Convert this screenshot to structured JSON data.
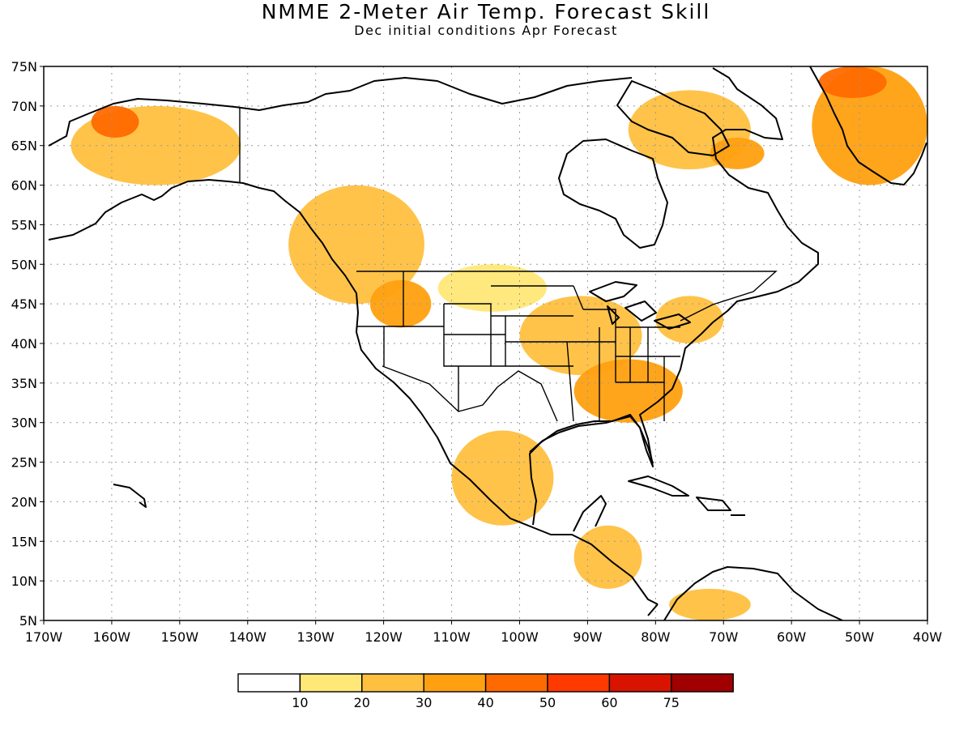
{
  "title": "NMME 2-Meter Air Temp. Forecast Skill",
  "subtitle": "Dec initial conditions  Apr Forecast",
  "map": {
    "lon_range": [
      -170,
      -40
    ],
    "lat_range": [
      5,
      75
    ],
    "lat_labels": [
      "5N",
      "10N",
      "15N",
      "20N",
      "25N",
      "30N",
      "35N",
      "40N",
      "45N",
      "50N",
      "55N",
      "60N",
      "65N",
      "70N",
      "75N"
    ],
    "lon_labels": [
      "170W",
      "160W",
      "150W",
      "140W",
      "130W",
      "120W",
      "110W",
      "100W",
      "90W",
      "80W",
      "70W",
      "60W",
      "50W",
      "40W"
    ],
    "grid": "dotted",
    "land_outline": "#000000"
  },
  "colorbar": {
    "ticks": [
      "10",
      "20",
      "30",
      "40",
      "50",
      "60",
      "75"
    ],
    "colors": [
      "#ffffff",
      "#ffe878",
      "#ffc040",
      "#ffa010",
      "#ff6a00",
      "#ff3a00",
      "#d81400",
      "#a00000"
    ]
  },
  "skill_regions": [
    {
      "name": "Alaska",
      "level": 2,
      "lon": [
        -166,
        -141
      ],
      "lat": [
        60,
        70
      ]
    },
    {
      "name": "Northern Alaska coast",
      "level": 4,
      "lon": [
        -163,
        -156
      ],
      "lat": [
        66,
        70
      ]
    },
    {
      "name": "Western Canada / Pacific Northwest",
      "level": 2,
      "lon": [
        -134,
        -114
      ],
      "lat": [
        45,
        60
      ]
    },
    {
      "name": "Idaho / Montana",
      "level": 3,
      "lon": [
        -122,
        -113
      ],
      "lat": [
        42,
        48
      ]
    },
    {
      "name": "Northern Plains",
      "level": 1,
      "lon": [
        -112,
        -96
      ],
      "lat": [
        44,
        50
      ]
    },
    {
      "name": "Midwest / Ohio Valley",
      "level": 2,
      "lon": [
        -100,
        -82
      ],
      "lat": [
        36,
        46
      ]
    },
    {
      "name": "Southeast US",
      "level": 3,
      "lon": [
        -92,
        -76
      ],
      "lat": [
        30,
        38
      ]
    },
    {
      "name": "Northeast US",
      "level": 2,
      "lon": [
        -80,
        -70
      ],
      "lat": [
        40,
        46
      ]
    },
    {
      "name": "Mexico",
      "level": 2,
      "lon": [
        -110,
        -95
      ],
      "lat": [
        17,
        29
      ]
    },
    {
      "name": "Central America",
      "level": 2,
      "lon": [
        -92,
        -82
      ],
      "lat": [
        9,
        17
      ]
    },
    {
      "name": "Northern South America",
      "level": 2,
      "lon": [
        -78,
        -66
      ],
      "lat": [
        5,
        9
      ]
    },
    {
      "name": "Hudson Strait / Baffin",
      "level": 2,
      "lon": [
        -84,
        -66
      ],
      "lat": [
        62,
        72
      ]
    },
    {
      "name": "Labrador",
      "level": 3,
      "lon": [
        -72,
        -64
      ],
      "lat": [
        62,
        66
      ]
    },
    {
      "name": "Greenland",
      "level": 3,
      "lon": [
        -57,
        -40
      ],
      "lat": [
        60,
        75
      ]
    },
    {
      "name": "Greenland northwest",
      "level": 4,
      "lon": [
        -56,
        -46
      ],
      "lat": [
        71,
        75
      ]
    }
  ]
}
